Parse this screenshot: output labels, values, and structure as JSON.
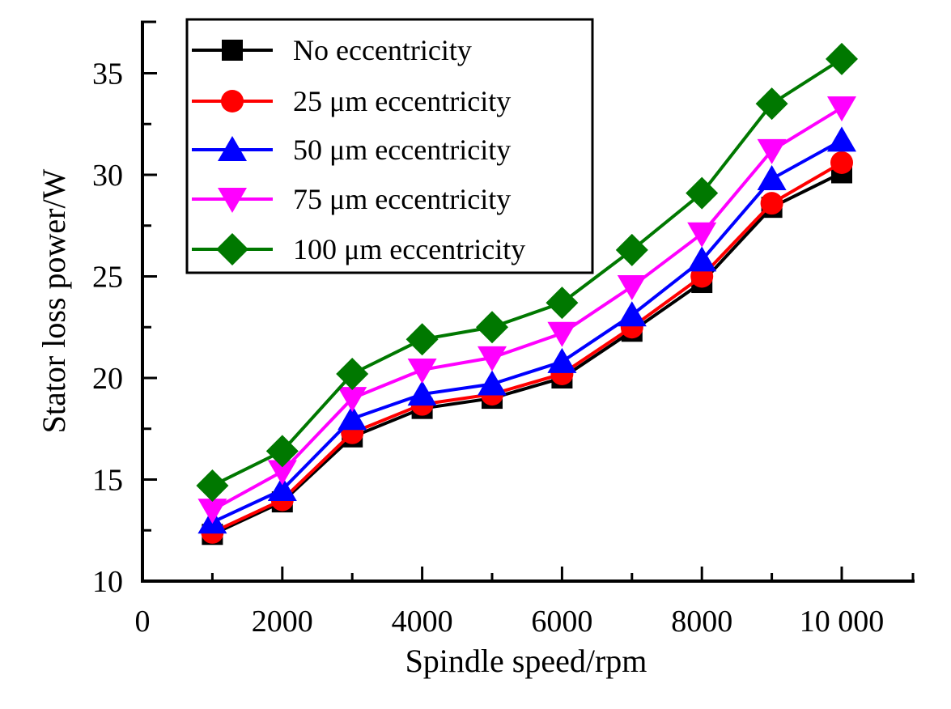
{
  "chart_data": {
    "type": "line",
    "title": "",
    "xlabel": "Spindle speed/rpm",
    "ylabel": "Stator loss power/W",
    "xlim": [
      0,
      11000
    ],
    "ylim": [
      10,
      37.5
    ],
    "x_ticks": [
      0,
      2000,
      4000,
      6000,
      8000,
      10000
    ],
    "x_tick_labels": [
      "0",
      "2000",
      "4000",
      "6000",
      "8000",
      "10 000"
    ],
    "x_minor_ticks": [
      1000,
      3000,
      5000,
      7000,
      9000
    ],
    "y_ticks": [
      10,
      15,
      20,
      25,
      30,
      35
    ],
    "y_tick_labels": [
      "10",
      "15",
      "20",
      "25",
      "30",
      "35"
    ],
    "y_minor_ticks": [
      12.5,
      17.5,
      22.5,
      27.5,
      32.5
    ],
    "grid": false,
    "legend_position": "top-left",
    "x": [
      1000,
      2000,
      3000,
      4000,
      5000,
      6000,
      7000,
      8000,
      9000,
      10000
    ],
    "series": [
      {
        "name": "No eccentricity",
        "color": "#000000",
        "marker": "square",
        "values": [
          12.3,
          13.9,
          17.1,
          18.5,
          19.0,
          20.0,
          22.3,
          24.7,
          28.4,
          30.1
        ]
      },
      {
        "name": "25 μm eccentricity",
        "color": "#ff0000",
        "marker": "circle",
        "values": [
          12.4,
          14.0,
          17.3,
          18.7,
          19.2,
          20.2,
          22.5,
          25.0,
          28.6,
          30.6
        ]
      },
      {
        "name": "50 μm eccentricity",
        "color": "#0000ff",
        "marker": "triangle-up",
        "values": [
          12.9,
          14.5,
          18.0,
          19.2,
          19.7,
          20.8,
          23.1,
          25.8,
          29.8,
          31.7
        ]
      },
      {
        "name": "75 μm eccentricity",
        "color": "#ff00ff",
        "marker": "triangle-down",
        "values": [
          13.5,
          15.4,
          19.0,
          20.4,
          21.0,
          22.2,
          24.5,
          27.1,
          31.2,
          33.3
        ]
      },
      {
        "name": "100 μm eccentricity",
        "color": "#007800",
        "marker": "diamond",
        "values": [
          14.7,
          16.4,
          20.2,
          21.9,
          22.5,
          23.7,
          26.3,
          29.1,
          33.5,
          35.7
        ]
      }
    ]
  }
}
